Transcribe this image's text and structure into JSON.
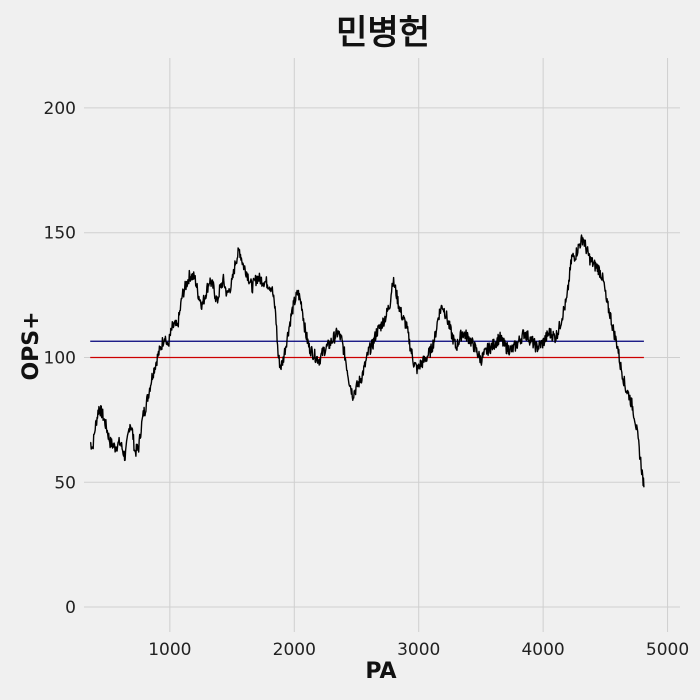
{
  "chart_data": {
    "type": "line",
    "title": "민병헌",
    "xlabel": "PA",
    "ylabel": "OPS+",
    "xlim": [
      310,
      5100
    ],
    "ylim": [
      -10,
      220
    ],
    "xticks": [
      1000,
      2000,
      3000,
      4000,
      5000
    ],
    "yticks": [
      0,
      50,
      100,
      150,
      200
    ],
    "grid": true,
    "colors": {
      "background": "#f0f0f0",
      "grid": "#cfcfcf",
      "line": "#000000",
      "league_avg": "#cc0000",
      "career_avg": "#00007a"
    },
    "reference_lines": [
      {
        "y": 100,
        "color": "#cc0000"
      },
      {
        "y": 106.5,
        "color": "#00007a"
      }
    ],
    "reference_x_range": [
      360,
      4810
    ],
    "series": [
      {
        "x": [
          360,
          380,
          400,
          430,
          460,
          490,
          520,
          560,
          600,
          640,
          680,
          700,
          720,
          750,
          770,
          790,
          800,
          830,
          860,
          900,
          940,
          960,
          980,
          1000,
          1020,
          1040,
          1060,
          1080,
          1100,
          1130,
          1160,
          1200,
          1230,
          1260,
          1290,
          1320,
          1350,
          1380,
          1400,
          1430,
          1460,
          1500,
          1530,
          1560,
          1590,
          1620,
          1660,
          1700,
          1740,
          1780,
          1820,
          1850,
          1870,
          1890,
          1910,
          1950,
          1980,
          2000,
          2030,
          2060,
          2090,
          2120,
          2160,
          2200,
          2240,
          2280,
          2320,
          2350,
          2380,
          2410,
          2440,
          2470,
          2500,
          2540,
          2570,
          2600,
          2630,
          2660,
          2700,
          2740,
          2770,
          2790,
          2810,
          2840,
          2870,
          2900,
          2930,
          2960,
          2990,
          3010,
          3050,
          3100,
          3130,
          3160,
          3190,
          3220,
          3260,
          3300,
          3350,
          3400,
          3450,
          3500,
          3550,
          3600,
          3650,
          3700,
          3750,
          3800,
          3850,
          3900,
          3950,
          4000,
          4050,
          4100,
          4130,
          4160,
          4190,
          4210,
          4230,
          4260,
          4290,
          4320,
          4350,
          4380,
          4410,
          4440,
          4470,
          4490,
          4510,
          4540,
          4560,
          4580,
          4600,
          4620,
          4640,
          4660,
          4690,
          4720,
          4740,
          4760,
          4780,
          4800,
          4810
        ],
        "y": [
          66,
          64,
          72,
          80,
          77,
          72,
          66,
          64,
          66,
          60,
          74,
          70,
          62,
          64,
          72,
          78,
          79,
          86,
          93,
          100,
          106,
          109,
          104,
          108,
          112,
          113,
          112,
          118,
          125,
          129,
          133,
          132,
          125,
          121,
          126,
          131,
          128,
          122,
          127,
          131,
          125,
          130,
          139,
          143,
          137,
          134,
          128,
          132,
          131,
          130,
          128,
          118,
          101,
          96,
          99,
          110,
          118,
          122,
          126,
          121,
          110,
          104,
          101,
          99,
          103,
          105,
          108,
          110,
          107,
          100,
          91,
          85,
          88,
          92,
          97,
          103,
          105,
          110,
          113,
          117,
          122,
          131,
          128,
          121,
          116,
          113,
          105,
          98,
          95,
          97,
          99,
          103,
          108,
          117,
          121,
          117,
          110,
          104,
          110,
          108,
          104,
          99,
          103,
          105,
          108,
          104,
          103,
          106,
          110,
          107,
          104,
          106,
          110,
          108,
          112,
          118,
          123,
          132,
          140,
          141,
          145,
          148,
          143,
          139,
          137,
          136,
          133,
          129,
          122,
          117,
          112,
          108,
          104,
          97,
          93,
          88,
          85,
          80,
          75,
          68,
          60,
          52,
          48
        ]
      }
    ]
  }
}
